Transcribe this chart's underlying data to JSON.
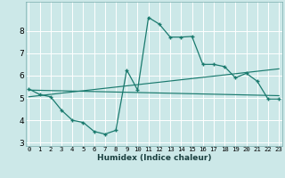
{
  "xlabel": "Humidex (Indice chaleur)",
  "bg_color": "#cce8e8",
  "grid_color": "#ffffff",
  "line_color": "#1a7a6e",
  "x_data": [
    0,
    1,
    2,
    3,
    4,
    5,
    6,
    7,
    8,
    9,
    10,
    11,
    12,
    13,
    14,
    15,
    16,
    17,
    18,
    19,
    20,
    21,
    22,
    23
  ],
  "y_main": [
    5.4,
    5.15,
    5.05,
    4.45,
    4.0,
    3.9,
    3.5,
    3.38,
    3.55,
    6.25,
    5.35,
    8.6,
    8.3,
    7.72,
    7.72,
    7.75,
    6.5,
    6.5,
    6.4,
    5.9,
    6.1,
    5.75,
    4.95,
    4.95
  ],
  "trend1_x": [
    0,
    23
  ],
  "trend1_y": [
    5.05,
    6.3
  ],
  "trend2_x": [
    0,
    23
  ],
  "trend2_y": [
    5.35,
    5.1
  ],
  "ylim": [
    2.85,
    9.3
  ],
  "xlim": [
    -0.3,
    23.3
  ],
  "yticks": [
    3,
    4,
    5,
    6,
    7,
    8
  ],
  "xticks": [
    0,
    1,
    2,
    3,
    4,
    5,
    6,
    7,
    8,
    9,
    10,
    11,
    12,
    13,
    14,
    15,
    16,
    17,
    18,
    19,
    20,
    21,
    22,
    23
  ],
  "xtick_labels": [
    "0",
    "1",
    "2",
    "3",
    "4",
    "5",
    "6",
    "7",
    "8",
    "9",
    "10",
    "11",
    "12",
    "13",
    "14",
    "15",
    "16",
    "17",
    "18",
    "19",
    "20",
    "21",
    "22",
    "23"
  ],
  "ytick_fontsize": 6.5,
  "xtick_fontsize": 5.2,
  "xlabel_fontsize": 6.5
}
